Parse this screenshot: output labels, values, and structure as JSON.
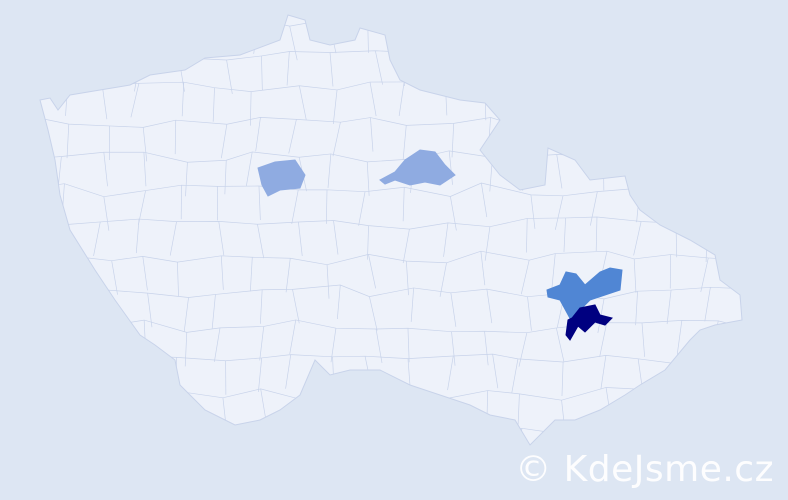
{
  "map": {
    "colors": {
      "background": "#dde6f3",
      "country_fill": "#eef2fa",
      "border": "#c8d3ea",
      "level_low": "#8fabe1",
      "level_mid": "#5086d4",
      "level_high": "#000080"
    },
    "highlighted_regions": [
      {
        "level": "low"
      },
      {
        "level": "low"
      },
      {
        "level": "mid"
      },
      {
        "level": "high"
      }
    ]
  },
  "watermark": {
    "text": "© KdeJsme.cz"
  }
}
